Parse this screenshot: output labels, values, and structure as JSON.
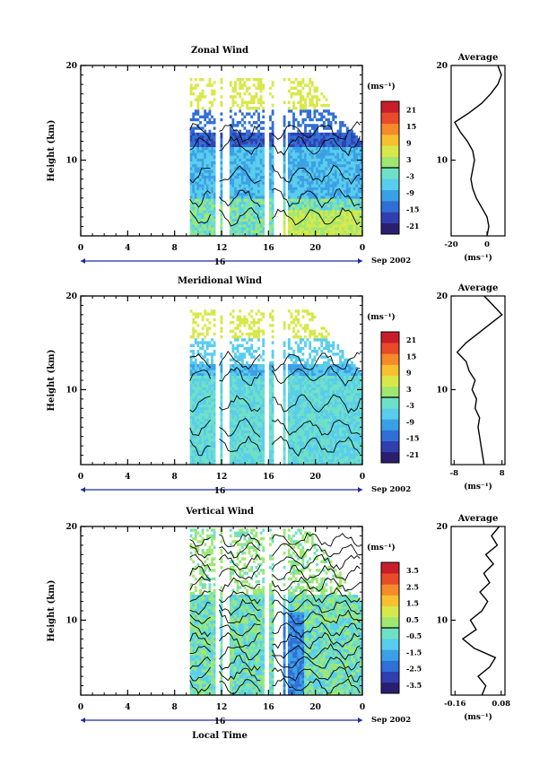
{
  "chart_data": [
    {
      "type": "heatmap",
      "title": "Zonal Wind",
      "ylabel": "Height (km)",
      "xlabel": "",
      "x_ticks": [
        "0",
        "4",
        "8",
        "12",
        "16",
        "20",
        "0"
      ],
      "y_ticks": [
        "20",
        "10"
      ],
      "ylim": [
        2,
        20
      ],
      "date_day": "16",
      "date_month_year": "Sep 2002",
      "colorbar": {
        "unit_label": "(ms⁻¹)",
        "ticks": [
          "21",
          "15",
          "9",
          "3",
          "-3",
          "-9",
          "-15",
          "-21"
        ],
        "range": [
          -24,
          24
        ]
      },
      "profile": {
        "title": "Average",
        "x_ticks": [
          "-20",
          "0"
        ],
        "xlim": [
          -20,
          10
        ],
        "unit_label": "(ms⁻¹)",
        "y_ticks": [
          "20",
          "10"
        ],
        "heights": [
          2,
          3,
          4,
          5,
          6,
          7,
          8,
          9,
          10,
          11,
          12,
          13,
          14,
          15,
          16,
          17,
          18,
          19,
          20
        ],
        "values": [
          0,
          1,
          0,
          -3,
          -6,
          -8,
          -9,
          -8,
          -7,
          -8,
          -11,
          -15,
          -18,
          -10,
          -3,
          2,
          6,
          8,
          6
        ]
      }
    },
    {
      "type": "heatmap",
      "title": "Meridional Wind",
      "ylabel": "Height (km)",
      "xlabel": "",
      "x_ticks": [
        "0",
        "4",
        "8",
        "12",
        "16",
        "20",
        "0"
      ],
      "y_ticks": [
        "20",
        "10"
      ],
      "ylim": [
        2,
        20
      ],
      "date_day": "16",
      "date_month_year": "Sep 2002",
      "colorbar": {
        "unit_label": "(ms⁻¹)",
        "ticks": [
          "21",
          "15",
          "9",
          "3",
          "-3",
          "-9",
          "-15",
          "-21"
        ],
        "range": [
          -24,
          24
        ]
      },
      "profile": {
        "title": "Average",
        "x_ticks": [
          "-8",
          "8"
        ],
        "xlim": [
          -9,
          9
        ],
        "unit_label": "(ms⁻¹)",
        "y_ticks": [
          "20",
          "10"
        ],
        "heights": [
          2,
          3,
          4,
          5,
          6,
          7,
          8,
          9,
          10,
          11,
          12,
          13,
          14,
          15,
          16,
          17,
          18,
          19,
          20
        ],
        "values": [
          2,
          1.5,
          1,
          0.5,
          0,
          0.5,
          -1,
          -0.5,
          -2,
          -1,
          -3,
          -4,
          -7,
          -4,
          0,
          4,
          8,
          5,
          2
        ]
      }
    },
    {
      "type": "heatmap",
      "title": "Vertical Wind",
      "ylabel": "Height (km)",
      "xlabel": "Local Time",
      "x_ticks": [
        "0",
        "4",
        "8",
        "12",
        "16",
        "20",
        "0"
      ],
      "y_ticks": [
        "20",
        "10"
      ],
      "ylim": [
        2,
        20
      ],
      "date_day": "16",
      "date_month_year": "Sep 2002",
      "colorbar": {
        "unit_label": "(ms⁻¹)",
        "ticks": [
          "3.5",
          "2.5",
          "1.5",
          "0.5",
          "-0.5",
          "-1.5",
          "-2.5",
          "-3.5"
        ],
        "range": [
          -4,
          4
        ]
      },
      "profile": {
        "title": "Average",
        "x_ticks": [
          "-0.16",
          "0.08"
        ],
        "xlim": [
          -0.18,
          0.1
        ],
        "unit_label": "(ms⁻¹)",
        "y_ticks": [
          "20",
          "10"
        ],
        "heights": [
          2,
          3,
          4,
          5,
          6,
          7,
          8,
          9,
          10,
          11,
          12,
          13,
          14,
          15,
          16,
          17,
          18,
          19,
          20
        ],
        "values": [
          -0.02,
          0.0,
          -0.04,
          0.02,
          0.05,
          -0.06,
          -0.12,
          -0.05,
          -0.08,
          -0.02,
          0.01,
          -0.03,
          0.02,
          -0.01,
          0.04,
          0.0,
          0.06,
          0.03,
          0.07
        ]
      }
    }
  ]
}
